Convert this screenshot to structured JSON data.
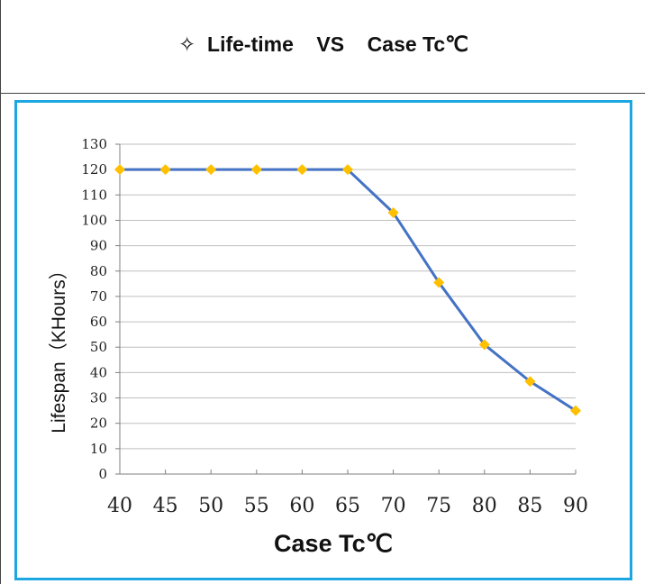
{
  "title": {
    "symbol": "✧",
    "text": "Life-time    VS    Case Tc℃"
  },
  "chart_data": {
    "type": "line",
    "title": "Life-time VS Case Tc℃",
    "xlabel": "Case Tc℃",
    "ylabel": "Lifespan（KHours）",
    "x": [
      40,
      45,
      50,
      55,
      60,
      65,
      70,
      75,
      80,
      85,
      90
    ],
    "series": [
      {
        "values": [
          120,
          120,
          120,
          120,
          120,
          120,
          103,
          75.5,
          51,
          36.5,
          25
        ]
      }
    ],
    "xticks": [
      "40",
      "45",
      "50",
      "55",
      "60",
      "65",
      "70",
      "75",
      "80",
      "85",
      "90"
    ],
    "yticks": [
      "0",
      "10",
      "20",
      "30",
      "40",
      "50",
      "60",
      "70",
      "80",
      "90",
      "100",
      "110",
      "120",
      "130"
    ],
    "ylim": [
      0,
      130
    ],
    "xlim": [
      40,
      90
    ],
    "grid": "horizontal",
    "line_color": "#4472c4",
    "marker_color": "#ffc000",
    "frame_color": "#1da7e2"
  }
}
